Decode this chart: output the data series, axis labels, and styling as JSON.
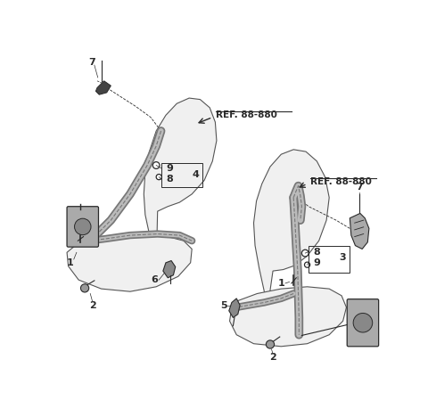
{
  "bg_color": "#ffffff",
  "line_color": "#2a2a2a",
  "seat_fill": "#f0f0f0",
  "seat_edge": "#555555",
  "belt_dark": "#888888",
  "belt_light": "#cccccc",
  "part_dark": "#444444",
  "ref1_text": "REF. 88-880",
  "ref2_text": "REF. 88-880",
  "figsize": [
    4.8,
    4.68
  ],
  "dpi": 100
}
